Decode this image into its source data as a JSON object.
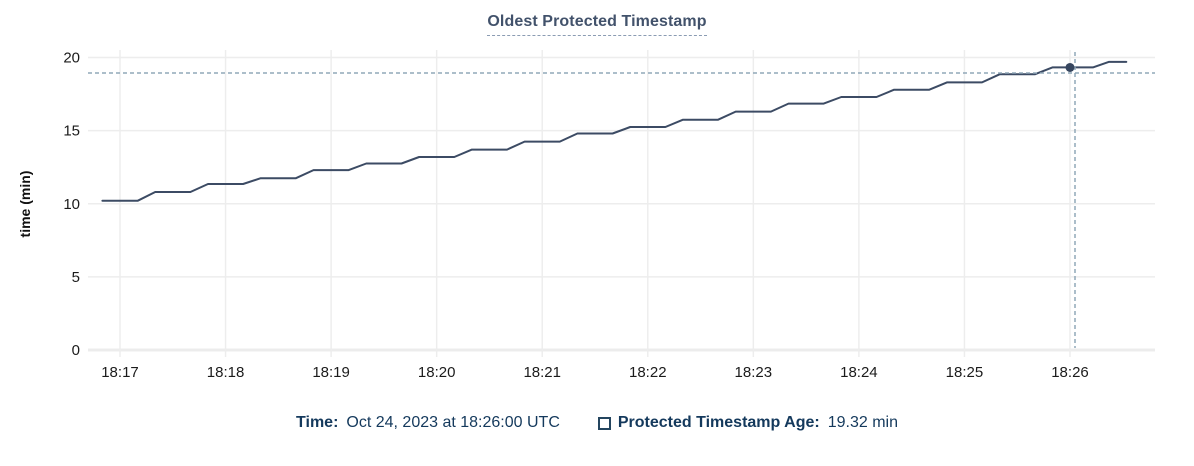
{
  "title": "Oldest Protected Timestamp",
  "colors": {
    "title": "#42526b",
    "title_underline": "#8b9cb3",
    "series_line": "#3c4b64",
    "hover_dot": "#36465f",
    "crosshair": "#91a8b8",
    "gridline": "#ededed",
    "axis_line": "#ececec",
    "tick_text": "#1b1b1b",
    "axis_title_text": "#111111",
    "legend_text": "#14395c"
  },
  "chart_data": {
    "type": "line",
    "title": "Oldest Protected Timestamp",
    "xlabel": "",
    "ylabel": "time (min)",
    "ylim": [
      0,
      20
    ],
    "y_ticks": [
      0,
      5,
      10,
      15,
      20
    ],
    "x_ticks": [
      "18:17",
      "18:18",
      "18:19",
      "18:20",
      "18:21",
      "18:22",
      "18:23",
      "18:24",
      "18:25",
      "18:26"
    ],
    "grid": true,
    "legend_position": "bottom",
    "series": [
      {
        "name": "Protected Timestamp Age",
        "unit": "min",
        "points": [
          [
            "18:16:50",
            10.2
          ],
          [
            "18:17:10",
            10.2
          ],
          [
            "18:17:20",
            10.8
          ],
          [
            "18:17:40",
            10.8
          ],
          [
            "18:17:50",
            11.35
          ],
          [
            "18:18:10",
            11.35
          ],
          [
            "18:18:20",
            11.75
          ],
          [
            "18:18:40",
            11.75
          ],
          [
            "18:18:50",
            12.3
          ],
          [
            "18:19:10",
            12.3
          ],
          [
            "18:19:20",
            12.75
          ],
          [
            "18:19:40",
            12.75
          ],
          [
            "18:19:50",
            13.2
          ],
          [
            "18:20:10",
            13.2
          ],
          [
            "18:20:20",
            13.7
          ],
          [
            "18:20:40",
            13.7
          ],
          [
            "18:20:50",
            14.25
          ],
          [
            "18:21:10",
            14.25
          ],
          [
            "18:21:20",
            14.8
          ],
          [
            "18:21:40",
            14.8
          ],
          [
            "18:21:50",
            15.25
          ],
          [
            "18:22:10",
            15.25
          ],
          [
            "18:22:20",
            15.75
          ],
          [
            "18:22:40",
            15.75
          ],
          [
            "18:22:50",
            16.3
          ],
          [
            "18:23:10",
            16.3
          ],
          [
            "18:23:20",
            16.85
          ],
          [
            "18:23:40",
            16.85
          ],
          [
            "18:23:50",
            17.3
          ],
          [
            "18:24:10",
            17.3
          ],
          [
            "18:24:20",
            17.8
          ],
          [
            "18:24:40",
            17.8
          ],
          [
            "18:24:50",
            18.3
          ],
          [
            "18:25:10",
            18.3
          ],
          [
            "18:25:20",
            18.85
          ],
          [
            "18:25:40",
            18.85
          ],
          [
            "18:25:50",
            19.32
          ],
          [
            "18:26:13",
            19.32
          ],
          [
            "18:26:22",
            19.7
          ],
          [
            "18:26:32",
            19.7
          ]
        ]
      }
    ],
    "hover_point": {
      "time": "18:26:00",
      "value": 19.32
    }
  },
  "tooltip": {
    "time_label": "Time:",
    "time_value": "Oct 24, 2023 at 18:26:00 UTC",
    "series_label": "Protected Timestamp Age:",
    "series_value": "19.32 min"
  }
}
